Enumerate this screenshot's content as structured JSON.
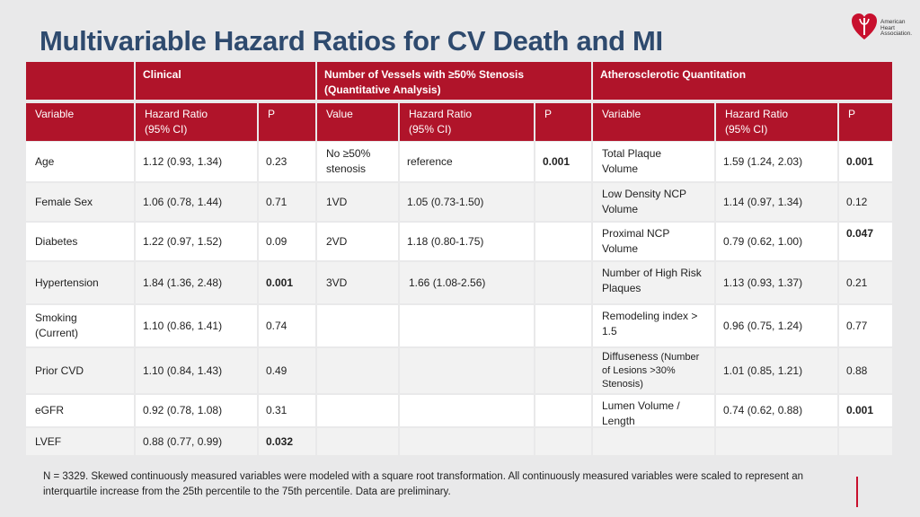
{
  "title": "Multivariable Hazard Ratios for CV Death and MI",
  "logo": {
    "icon": "heart-torch-icon",
    "lines": [
      "American",
      "Heart",
      "Association."
    ]
  },
  "groups": {
    "clinical": "Clinical",
    "vessels_line1": "Number of Vessels with ≥50% Stenosis",
    "vessels_line2": "(Quantitative Analysis)",
    "athero": "Atherosclerotic Quantitation"
  },
  "columns": {
    "c1": "Variable",
    "c2_l1": "Hazard Ratio",
    "c2_l2": "(95% CI)",
    "c3": "P",
    "c4": "Value",
    "c5_l1": "Hazard Ratio",
    "c5_l2": "(95% CI)",
    "c6": "P",
    "c7": "Variable",
    "c8_l1": "Hazard Ratio",
    "c8_l2": "(95% CI)",
    "c9": "P"
  },
  "clinical_rows": [
    {
      "variable": "Age",
      "hr": "1.12 (0.93, 1.34)",
      "p": "0.23"
    },
    {
      "variable": "Female Sex",
      "hr": "1.06 (0.78, 1.44)",
      "p": "0.71"
    },
    {
      "variable": "Diabetes",
      "hr": "1.22 (0.97, 1.52)",
      "p": "0.09"
    },
    {
      "variable": "Hypertension",
      "hr": "1.84 (1.36, 2.48)",
      "p": "0.001"
    },
    {
      "variable_l1": "Smoking",
      "variable_l2": "(Current)",
      "hr": "1.10 (0.86, 1.41)",
      "p": "0.74"
    },
    {
      "variable": "Prior CVD",
      "hr": "1.10 (0.84, 1.43)",
      "p": "0.49"
    },
    {
      "variable": "eGFR",
      "hr": "0.92 (0.78, 1.08)",
      "p": "0.31"
    },
    {
      "variable": "LVEF",
      "hr": "0.88 (0.77, 0.99)",
      "p": "0.032"
    }
  ],
  "vessel_rows": [
    {
      "value_l1": "No ≥50%",
      "value_l2": "stenosis",
      "hr": "reference",
      "p": "0.001"
    },
    {
      "value": "1VD",
      "hr": "1.05 (0.73-1.50)",
      "p": ""
    },
    {
      "value": "2VD",
      "hr": "1.18 (0.80-1.75)",
      "p": ""
    },
    {
      "value": "3VD",
      "hr": "1.66 (1.08-2.56)",
      "p": ""
    }
  ],
  "athero_rows": [
    {
      "l1": "Total Plaque",
      "l2": "Volume",
      "hr": "1.59 (1.24, 2.03)",
      "p": "0.001"
    },
    {
      "l1": "Low Density NCP",
      "l2": "Volume",
      "hr": "1.14 (0.97, 1.34)",
      "p": "0.12"
    },
    {
      "l1": "Proximal NCP",
      "l2": "Volume",
      "hr": "0.79 (0.62, 1.00)",
      "p": "0.047"
    },
    {
      "l1": "Number of High Risk",
      "l2": "Plaques",
      "hr": "1.13 (0.93, 1.37)",
      "p": "0.21"
    },
    {
      "l1": "Remodeling index >",
      "l2": "1.5",
      "hr": "0.96 (0.75, 1.24)",
      "p": "0.77"
    },
    {
      "l1": "Diffuseness",
      "l1b": " (Number",
      "l2": "of Lesions >30%",
      "l3": "Stenosis)",
      "hr": "1.01 (0.85, 1.21)",
      "p": "0.88"
    },
    {
      "l1": "Lumen Volume /",
      "l2": "Length",
      "hr": "0.74 (0.62, 0.88)",
      "p": "0.001"
    }
  ],
  "footnote_l1": "N = 3329. Skewed continuously measured variables were modeled with a square root transformation. All continuously measured variables were scaled to represent an",
  "footnote_l2": "interquartile increase from the 25th percentile to the 75th percentile. Data are preliminary.",
  "colors": {
    "header": "#b0142a",
    "title": "#2e4a6e",
    "accent": "#c8102e"
  }
}
